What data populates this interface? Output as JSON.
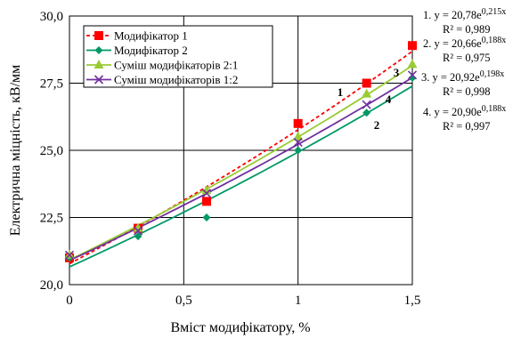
{
  "chart_data": {
    "type": "scatter",
    "xlabel": "Вміст модифікатору, %",
    "ylabel": "Електрична міцність, кВ/мм",
    "xlim": [
      0,
      1.5
    ],
    "ylim": [
      20.0,
      30.0
    ],
    "x_ticks": [
      "0",
      "0,5",
      "1",
      "1,5"
    ],
    "y_ticks": [
      "20,0",
      "22,5",
      "25,0",
      "27,5",
      "30,0"
    ],
    "grid": true,
    "legend_position": "top-left",
    "series": [
      {
        "name": "Модифікатор 1",
        "color": "#ff0000",
        "marker": "square",
        "trend": "dashed",
        "trend_a": 20.78,
        "trend_b": 0.215,
        "points": [
          [
            0,
            21.0
          ],
          [
            0.3,
            22.1
          ],
          [
            0.6,
            23.1
          ],
          [
            1.0,
            26.0
          ],
          [
            1.3,
            27.5
          ],
          [
            1.5,
            28.9
          ]
        ]
      },
      {
        "name": "Модифікатор 2",
        "color": "#009966",
        "marker": "diamond",
        "trend": "solid",
        "trend_a": 20.66,
        "trend_b": 0.188,
        "points": [
          [
            0,
            21.0
          ],
          [
            0.3,
            21.8
          ],
          [
            0.6,
            22.5
          ],
          [
            1.0,
            25.0
          ],
          [
            1.3,
            26.4
          ],
          [
            1.5,
            27.7
          ]
        ]
      },
      {
        "name": "Суміш модифікаторів 2:1",
        "color": "#99cc33",
        "marker": "triangle",
        "trend": "solid",
        "trend_a": 20.92,
        "trend_b": 0.198,
        "points": [
          [
            0,
            21.1
          ],
          [
            0.3,
            22.1
          ],
          [
            0.6,
            23.5
          ],
          [
            1.0,
            25.5
          ],
          [
            1.3,
            27.1
          ],
          [
            1.5,
            28.2
          ]
        ]
      },
      {
        "name": "Суміш модифікаторів 1:2",
        "color": "#7030a0",
        "marker": "x",
        "trend": "solid",
        "trend_a": 20.9,
        "trend_b": 0.188,
        "points": [
          [
            0,
            21.1
          ],
          [
            0.3,
            22.0
          ],
          [
            0.6,
            23.4
          ],
          [
            1.0,
            25.3
          ],
          [
            1.3,
            26.7
          ],
          [
            1.5,
            27.8
          ]
        ]
      }
    ],
    "equations": [
      {
        "num": "1.",
        "formula": "y = 20,78e",
        "exp": "0,215x",
        "r2": "R² = 0,989"
      },
      {
        "num": "2.",
        "formula": "y = 20,66e",
        "exp": "0,188x",
        "r2": "R² = 0,975"
      },
      {
        "num": "3.",
        "formula": "y = 20,92e",
        "exp": "0,198x",
        "r2": "R² = 0,998"
      },
      {
        "num": "4.",
        "formula": "y = 20,90e",
        "exp": "0,188x",
        "r2": "R² = 0,997"
      }
    ],
    "curve_labels": [
      "1",
      "2",
      "3",
      "4"
    ]
  }
}
